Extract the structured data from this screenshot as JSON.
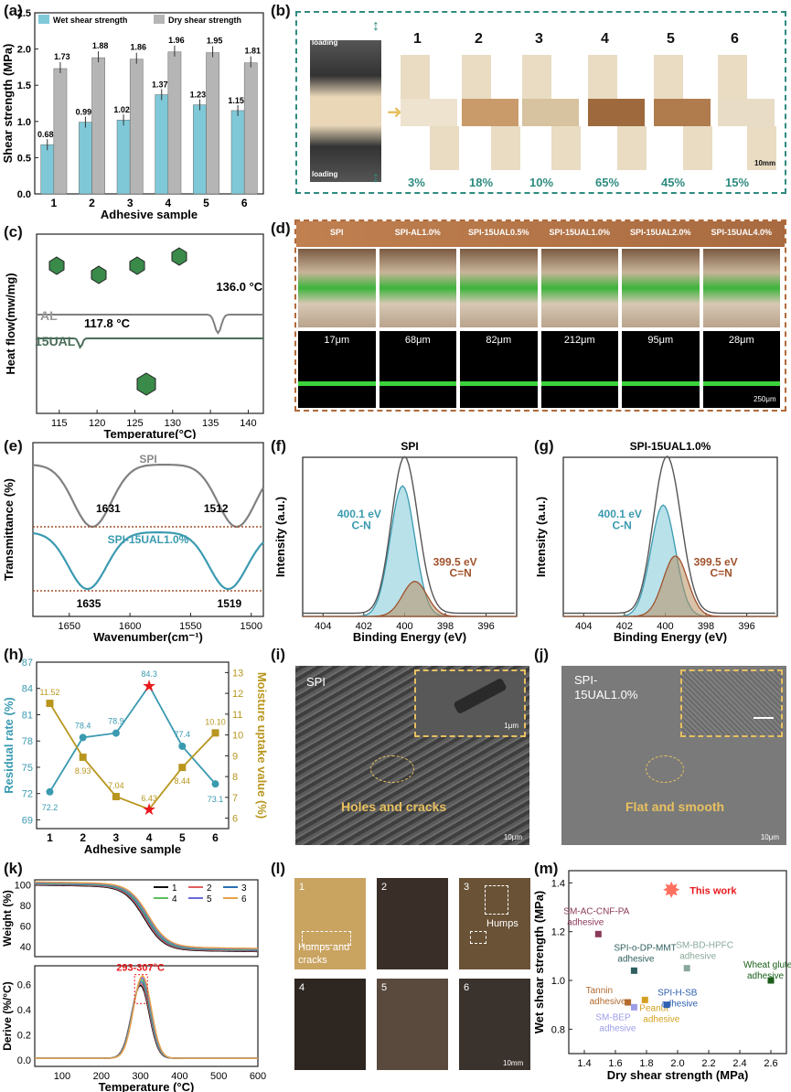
{
  "panel_labels": [
    "(a)",
    "(b)",
    "(c)",
    "(d)",
    "(e)",
    "(f)",
    "(g)",
    "(h)",
    "(i)",
    "(j)",
    "(k)",
    "(l)",
    "(m)"
  ],
  "colors": {
    "wet": "#7fc8d8",
    "dry": "#b5b5b5",
    "teal": "#3a9ab0",
    "gold": "#b8961e",
    "brown": "#a0522d",
    "red": "#e8181c",
    "dash_teal": "#2e8b7f",
    "dash_brown": "#b06a3a",
    "curve_gray": "#808080",
    "green": "#3cd23c"
  },
  "chart_data": [
    {
      "id": "a",
      "type": "bar",
      "categories": [
        "1",
        "2",
        "3",
        "4",
        "5",
        "6"
      ],
      "series": [
        {
          "name": "Wet shear strength",
          "values": [
            0.68,
            0.99,
            1.02,
            1.37,
            1.23,
            1.15
          ]
        },
        {
          "name": "Dry shear strength",
          "values": [
            1.73,
            1.88,
            1.86,
            1.96,
            1.95,
            1.81
          ]
        }
      ],
      "value_labels": {
        "wet": [
          "0.68",
          "0.99",
          "1.02",
          "1.37",
          "1.23",
          "1.15"
        ],
        "dry": [
          "1.73",
          "1.88",
          "1.86",
          "1.96",
          "1.95",
          "1.81"
        ]
      },
      "xlabel": "Adhesive sample",
      "ylabel": "Shear strength (MPa)",
      "ylim": [
        0,
        2.5
      ],
      "yticks": [
        "0.0",
        "0.5",
        "1.0",
        "1.5",
        "2.0",
        "2.5"
      ],
      "legend": "top"
    },
    {
      "id": "c",
      "type": "line",
      "xlabel": "Temperature(°C)",
      "ylabel": "Heat flow(mw/mg)",
      "xticks": [
        "115",
        "120",
        "125",
        "130",
        "135",
        "140"
      ],
      "xlim": [
        112,
        142
      ],
      "series": [
        {
          "name": "AL",
          "peak_x": 136.0,
          "peak_label": "136.0 °C"
        },
        {
          "name": "15UAL",
          "peak_x": 117.8,
          "peak_label": "117.8 °C"
        }
      ]
    },
    {
      "id": "e",
      "type": "line",
      "xlabel": "Wavenumber(cm⁻¹)",
      "ylabel": "Transmittance (%)",
      "xticks": [
        "1650",
        "1600",
        "1550",
        "1500"
      ],
      "xlim": [
        1680,
        1490
      ],
      "series": [
        {
          "name": "SPI",
          "minima": [
            1631,
            1512
          ],
          "minima_labels": [
            "1631",
            "1512"
          ]
        },
        {
          "name": "SPI-15UAL1.0%",
          "minima": [
            1635,
            1519
          ],
          "minima_labels": [
            "1635",
            "1519"
          ]
        }
      ]
    },
    {
      "id": "f",
      "type": "area",
      "title": "SPI",
      "xlabel": "Binding Energy (eV)",
      "ylabel": "Intensity (a.u.)",
      "xticks": [
        "404",
        "402",
        "400",
        "398",
        "396"
      ],
      "xlim": [
        405,
        394.5
      ],
      "peaks": [
        {
          "center": 400.1,
          "height": 0.82,
          "label1": "400.1 eV",
          "label2": "C-N"
        },
        {
          "center": 399.5,
          "height": 0.22,
          "label1": "399.5 eV",
          "label2": "C=N"
        }
      ]
    },
    {
      "id": "g",
      "type": "area",
      "title": "SPI-15UAL1.0%",
      "xlabel": "Binding Energy (eV)",
      "ylabel": "Intensity (a.u.)",
      "xticks": [
        "404",
        "402",
        "400",
        "398",
        "396"
      ],
      "xlim": [
        405,
        394.5
      ],
      "peaks": [
        {
          "center": 400.1,
          "height": 0.7,
          "label1": "400.1 eV",
          "label2": "C-N"
        },
        {
          "center": 399.5,
          "height": 0.38,
          "label1": "399.5 eV",
          "label2": "C=N"
        }
      ]
    },
    {
      "id": "h",
      "type": "line",
      "x": [
        1,
        2,
        3,
        4,
        5,
        6
      ],
      "series": [
        {
          "name": "Residual rate (%)",
          "values": [
            72.2,
            78.4,
            78.9,
            84.3,
            77.4,
            73.1
          ]
        },
        {
          "name": "Moisture uptake value (%)",
          "values": [
            11.52,
            8.93,
            7.04,
            6.43,
            8.44,
            10.1
          ]
        }
      ],
      "residual_labels": [
        "72.2",
        "78.4",
        "78.9",
        "84.3",
        "77.4",
        "73.1"
      ],
      "moisture_labels": [
        "11.52",
        "8.93",
        "7.04",
        "6.43",
        "8.44",
        "10.10"
      ],
      "xlabel": "Adhesive sample",
      "ylabel": "Residual rate (%)",
      "y2label": "Moisture uptake value (%)",
      "ylim": [
        68,
        87
      ],
      "yticks": [
        "69",
        "72",
        "75",
        "78",
        "81",
        "84",
        "87"
      ],
      "y2lim": [
        5.5,
        13.5
      ],
      "y2ticks": [
        "6",
        "7",
        "8",
        "9",
        "10",
        "11",
        "12",
        "13"
      ]
    },
    {
      "id": "k",
      "type": "line",
      "xlabel": "Temperature (°C)",
      "ylabel_top": "Weight (%)",
      "ylabel_bottom": "Derive (%/°C)",
      "xticks": [
        "100",
        "200",
        "300",
        "400",
        "500",
        "600"
      ],
      "xlim": [
        30,
        600
      ],
      "yticks_top": [
        "100",
        "80",
        "60",
        "40"
      ],
      "yticks_bottom": [
        "0.0",
        "0.2",
        "0.4",
        "0.6"
      ],
      "series": [
        {
          "name": "1"
        },
        {
          "name": "2"
        },
        {
          "name": "3"
        },
        {
          "name": "4"
        },
        {
          "name": "5"
        },
        {
          "name": "6"
        }
      ],
      "series_colors": [
        "#111111",
        "#e06060",
        "#2a6fb5",
        "#5cbf5c",
        "#6a6adc",
        "#e8a24a"
      ],
      "annotation": "293-307°C"
    },
    {
      "id": "m",
      "type": "scatter",
      "xlabel": "Dry shear strength (MPa)",
      "ylabel": "Wet shear strength (MPa)",
      "xlim": [
        1.3,
        2.7
      ],
      "ylim": [
        0.7,
        1.45
      ],
      "xticks": [
        "1.4",
        "1.6",
        "1.8",
        "2.0",
        "2.2",
        "2.4",
        "2.6"
      ],
      "yticks": [
        "0.8",
        "1.0",
        "1.2",
        "1.4"
      ],
      "points": [
        {
          "name": "This work",
          "x": 1.96,
          "y": 1.37,
          "color": "#e8181c"
        },
        {
          "name": "SM-AC-CNF-PA adhesive",
          "x": 1.49,
          "y": 1.19,
          "color": "#8b3a5a"
        },
        {
          "name": "SPI-o-DP-MMT adhesive",
          "x": 1.72,
          "y": 1.04,
          "color": "#2f5f5f"
        },
        {
          "name": "SM-BD-HPFC adhesive",
          "x": 2.06,
          "y": 1.05,
          "color": "#8aa89a"
        },
        {
          "name": "Wheat gluten adhesive",
          "x": 2.6,
          "y": 1.0,
          "color": "#1a5e1a"
        },
        {
          "name": "Tannin adhesive",
          "x": 1.68,
          "y": 0.91,
          "color": "#b36a2e"
        },
        {
          "name": "SM-BEP adhesive",
          "x": 1.72,
          "y": 0.89,
          "color": "#9d9de8"
        },
        {
          "name": "Peanut adhesive",
          "x": 1.79,
          "y": 0.92,
          "color": "#d4a020"
        },
        {
          "name": "SPI-H-SB adhesive",
          "x": 1.93,
          "y": 0.9,
          "color": "#3060b0"
        }
      ]
    }
  ],
  "panel_b": {
    "loading_top": "loading",
    "loading_bottom": "loading",
    "numbers": [
      "1",
      "2",
      "3",
      "4",
      "5",
      "6"
    ],
    "percents": [
      "3%",
      "18%",
      "10%",
      "65%",
      "45%",
      "15%"
    ],
    "scale": "10mm"
  },
  "panel_d": {
    "columns": [
      "SPI",
      "SPI-AL1.0%",
      "SPI-15UAL0.5%",
      "SPI-15UAL1.0%",
      "SPI-15UAL2.0%",
      "SPI-15UAL4.0%"
    ],
    "thickness": [
      "17μm",
      "68μm",
      "82μm",
      "212μm",
      "95μm",
      "28μm"
    ],
    "scale": "250μm"
  },
  "panel_i": {
    "label": "SPI",
    "caption": "Holes and  cracks",
    "scale": "10μm",
    "inset_scale": "1μm"
  },
  "panel_j": {
    "label1": "SPI-",
    "label2": "15UAL1.0%",
    "caption": "Flat and smooth",
    "scale": "10μm"
  },
  "panel_l": {
    "numbers": [
      "1",
      "2",
      "3",
      "4",
      "5",
      "6"
    ],
    "humps_cracks1": "Humps and",
    "humps_cracks2": "cracks",
    "humps": "Humps",
    "scale": "10mm"
  }
}
